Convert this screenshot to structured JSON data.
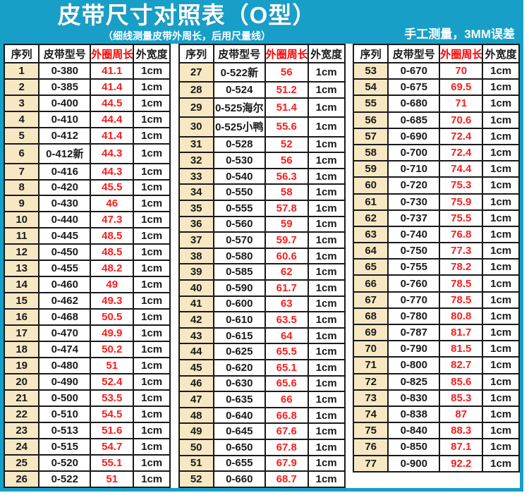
{
  "header": {
    "title": "皮带尺寸对照表（O型）",
    "subtitle": "（细线测量皮带外周长，后用尺量线）",
    "note": "手工测量，3MM误差"
  },
  "columns": [
    "序列",
    "皮带型号",
    "外圈周长",
    "外宽度"
  ],
  "colors": {
    "banner_background": "#189FC8",
    "frame_border": "#189FC8",
    "circumference_red": "#F81E1E",
    "header_red": "#FF0000",
    "serial_cell_background": "#F7E8C4",
    "cell_border": "#1a1a1a"
  },
  "tables": [
    {
      "rows": [
        [
          "1",
          "0-380",
          "41.1",
          "1cm"
        ],
        [
          "2",
          "0-385",
          "41.4",
          "1cm"
        ],
        [
          "3",
          "0-400",
          "44.5",
          "1cm"
        ],
        [
          "4",
          "0-410",
          "44.4",
          "1cm"
        ],
        [
          "5",
          "0-412",
          "41.4",
          "1cm"
        ],
        [
          "6",
          "0-412新",
          "44.3",
          "1cm"
        ],
        [
          "7",
          "0-416",
          "44.3",
          "1cm"
        ],
        [
          "8",
          "0-420",
          "45.5",
          "1cm"
        ],
        [
          "9",
          "0-430",
          "46",
          "1cm"
        ],
        [
          "10",
          "0-440",
          "47.3",
          "1cm"
        ],
        [
          "11",
          "0-445",
          "48.5",
          "1cm"
        ],
        [
          "12",
          "0-450",
          "48.5",
          "1cm"
        ],
        [
          "13",
          "0-455",
          "48.2",
          "1cm"
        ],
        [
          "14",
          "0-460",
          "49",
          "1cm"
        ],
        [
          "15",
          "0-462",
          "49.3",
          "1cm"
        ],
        [
          "16",
          "0-468",
          "50.5",
          "1cm"
        ],
        [
          "17",
          "0-470",
          "49.9",
          "1cm"
        ],
        [
          "18",
          "0-474",
          "50.2",
          "1cm"
        ],
        [
          "19",
          "0-480",
          "51",
          "1cm"
        ],
        [
          "20",
          "0-490",
          "52.4",
          "1cm"
        ],
        [
          "21",
          "0-500",
          "53.5",
          "1cm"
        ],
        [
          "22",
          "0-510",
          "54.5",
          "1cm"
        ],
        [
          "23",
          "0-513",
          "51.6",
          "1cm"
        ],
        [
          "24",
          "0-515",
          "54.7",
          "1cm"
        ],
        [
          "25",
          "0-520",
          "55.1",
          "1cm"
        ],
        [
          "26",
          "0-522",
          "51",
          "1cm"
        ]
      ]
    },
    {
      "rows": [
        [
          "27",
          "0-522新",
          "56",
          "1cm"
        ],
        [
          "28",
          "0-524",
          "51.2",
          "1cm"
        ],
        [
          "29",
          "0-525海尔",
          "51.4",
          "1cm"
        ],
        [
          "30",
          "0-525小鸭",
          "55.6",
          "1cm"
        ],
        [
          "31",
          "0-528",
          "52",
          "1cm"
        ],
        [
          "32",
          "0-530",
          "56",
          "1cm"
        ],
        [
          "33",
          "0-540",
          "56.3",
          "1cm"
        ],
        [
          "34",
          "0-550",
          "58",
          "1cm"
        ],
        [
          "35",
          "0-555",
          "57.8",
          "1cm"
        ],
        [
          "36",
          "0-560",
          "59",
          "1cm"
        ],
        [
          "37",
          "0-570",
          "59.7",
          "1cm"
        ],
        [
          "38",
          "0-580",
          "60.6",
          "1cm"
        ],
        [
          "39",
          "0-585",
          "62",
          "1cm"
        ],
        [
          "40",
          "0-590",
          "61.7",
          "1cm"
        ],
        [
          "41",
          "0-600",
          "63",
          "1cm"
        ],
        [
          "42",
          "0-610",
          "63.5",
          "1cm"
        ],
        [
          "43",
          "0-615",
          "64",
          "1cm"
        ],
        [
          "44",
          "0-625",
          "65.5",
          "1cm"
        ],
        [
          "45",
          "0-620",
          "65.1",
          "1cm"
        ],
        [
          "46",
          "0-630",
          "65.6",
          "1cm"
        ],
        [
          "47",
          "0-635",
          "66",
          "1cm"
        ],
        [
          "48",
          "0-640",
          "66.8",
          "1cm"
        ],
        [
          "49",
          "0-645",
          "67.6",
          "1cm"
        ],
        [
          "50",
          "0-650",
          "67.8",
          "1cm"
        ],
        [
          "51",
          "0-655",
          "67.9",
          "1cm"
        ],
        [
          "52",
          "0-660",
          "68.7",
          "1cm"
        ]
      ]
    },
    {
      "rows": [
        [
          "53",
          "0-670",
          "70",
          "1cm"
        ],
        [
          "54",
          "0-675",
          "69.5",
          "1cm"
        ],
        [
          "55",
          "0-680",
          "71",
          "1cm"
        ],
        [
          "56",
          "0-685",
          "70.6",
          "1cm"
        ],
        [
          "57",
          "0-690",
          "72.4",
          "1cm"
        ],
        [
          "58",
          "0-700",
          "72.4",
          "1cm"
        ],
        [
          "59",
          "0-710",
          "74.4",
          "1cm"
        ],
        [
          "60",
          "0-720",
          "75.3",
          "1cm"
        ],
        [
          "61",
          "0-730",
          "75.9",
          "1cm"
        ],
        [
          "62",
          "0-737",
          "75.5",
          "1cm"
        ],
        [
          "63",
          "0-740",
          "76.8",
          "1cm"
        ],
        [
          "64",
          "0-750",
          "77.3",
          "1cm"
        ],
        [
          "65",
          "0-755",
          "78.2",
          "1cm"
        ],
        [
          "66",
          "0-760",
          "78.5",
          "1cm"
        ],
        [
          "67",
          "0-770",
          "78.5",
          "1cm"
        ],
        [
          "68",
          "0-780",
          "80.8",
          "1cm"
        ],
        [
          "69",
          "0-787",
          "81.7",
          "1cm"
        ],
        [
          "70",
          "0-790",
          "81.5",
          "1cm"
        ],
        [
          "71",
          "0-800",
          "82.7",
          "1cm"
        ],
        [
          "72",
          "0-825",
          "85.6",
          "1cm"
        ],
        [
          "73",
          "0-830",
          "85.3",
          "1cm"
        ],
        [
          "74",
          "0-838",
          "87",
          "1cm"
        ],
        [
          "75",
          "0-840",
          "88.3",
          "1cm"
        ],
        [
          "76",
          "0-850",
          "87.1",
          "1cm"
        ],
        [
          "77",
          "0-900",
          "92.2",
          "1cm"
        ]
      ]
    }
  ]
}
